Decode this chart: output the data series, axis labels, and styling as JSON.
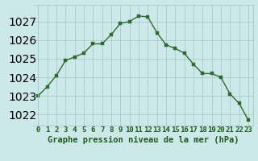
{
  "x": [
    0,
    1,
    2,
    3,
    4,
    5,
    6,
    7,
    8,
    9,
    10,
    11,
    12,
    13,
    14,
    15,
    16,
    17,
    18,
    19,
    20,
    21,
    22,
    23
  ],
  "y": [
    1023.0,
    1023.5,
    1024.1,
    1024.9,
    1025.1,
    1025.3,
    1025.8,
    1025.8,
    1026.3,
    1026.9,
    1027.0,
    1027.3,
    1027.25,
    1026.4,
    1025.75,
    1025.55,
    1025.3,
    1024.7,
    1024.2,
    1024.2,
    1024.0,
    1023.1,
    1022.6,
    1021.7
  ],
  "line_color": "#2d6a2d",
  "marker_color": "#2d6a2d",
  "bg_color": "#cce8e8",
  "grid_color": "#aacaca",
  "xlabel": "Graphe pression niveau de la mer (hPa)",
  "xlim_left": -0.5,
  "xlim_right": 23.5,
  "ylim_bottom": 1021.4,
  "ylim_top": 1027.9,
  "yticks": [
    1022,
    1023,
    1024,
    1025,
    1026,
    1027
  ],
  "xticks": [
    0,
    1,
    2,
    3,
    4,
    5,
    6,
    7,
    8,
    9,
    10,
    11,
    12,
    13,
    14,
    15,
    16,
    17,
    18,
    19,
    20,
    21,
    22,
    23
  ],
  "tick_color": "#1a5c1a",
  "xlabel_fontsize": 7.5,
  "tick_fontsize": 6.5,
  "marker_size": 2.5,
  "linewidth": 1.0
}
